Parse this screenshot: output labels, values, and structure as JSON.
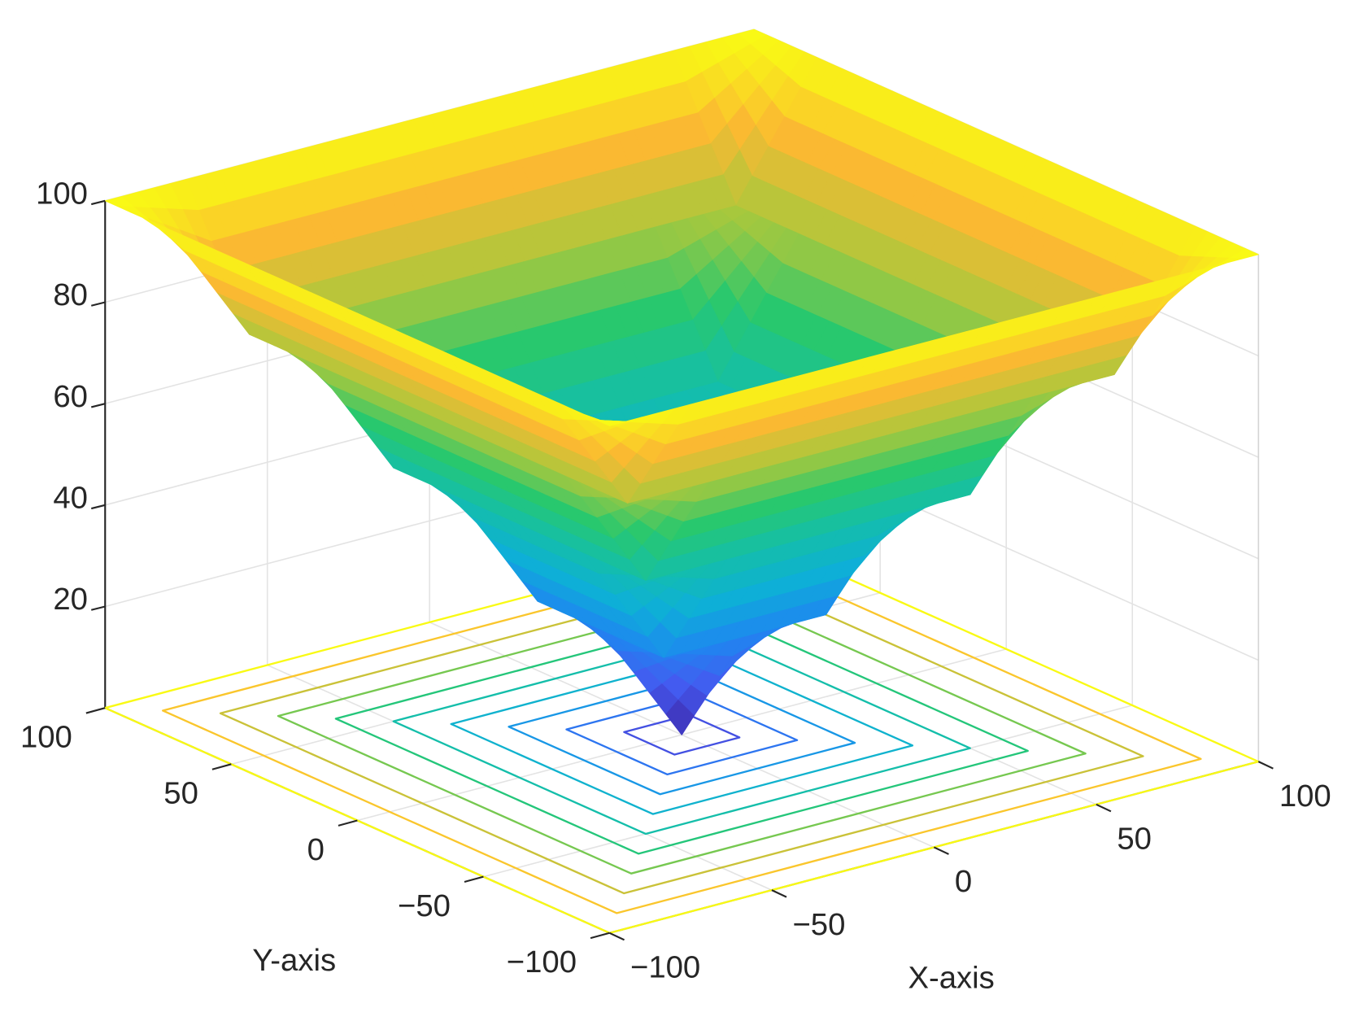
{
  "chart_data": {
    "type": "surface",
    "colormap": "parula",
    "x": [
      -100,
      -75,
      -50,
      -25,
      0,
      25,
      50,
      75,
      100
    ],
    "y": [
      -100,
      -75,
      -50,
      -25,
      0,
      25,
      50,
      75,
      100
    ],
    "z": [
      [
        100,
        100,
        100,
        100,
        100,
        100,
        100,
        100,
        100
      ],
      [
        100,
        75,
        75,
        75,
        75,
        75,
        75,
        75,
        100
      ],
      [
        100,
        75,
        50,
        50,
        50,
        50,
        50,
        75,
        100
      ],
      [
        100,
        75,
        50,
        25,
        25,
        25,
        50,
        75,
        100
      ],
      [
        100,
        75,
        50,
        25,
        0,
        25,
        50,
        75,
        100
      ],
      [
        100,
        75,
        50,
        25,
        25,
        25,
        50,
        75,
        100
      ],
      [
        100,
        75,
        50,
        50,
        50,
        50,
        50,
        75,
        100
      ],
      [
        100,
        75,
        75,
        75,
        75,
        75,
        75,
        75,
        100
      ],
      [
        100,
        100,
        100,
        100,
        100,
        100,
        100,
        100,
        100
      ]
    ],
    "contour_levels": [
      10,
      20,
      30,
      40,
      50,
      60,
      70,
      80,
      90,
      100
    ],
    "xlabel": "X-axis",
    "ylabel": "Y-axis",
    "xlim": [
      -100,
      100
    ],
    "ylim": [
      -100,
      100
    ],
    "zlim": [
      0,
      100
    ],
    "xticks": [
      {
        "value": -100,
        "label": "−100"
      },
      {
        "value": -50,
        "label": "−50"
      },
      0,
      50,
      100
    ],
    "yticks": [
      {
        "value": -100,
        "label": "−100"
      },
      {
        "value": -50,
        "label": "−50"
      },
      0,
      50,
      100
    ],
    "zticks": [
      20,
      40,
      60,
      80,
      100
    ],
    "grid": true
  }
}
